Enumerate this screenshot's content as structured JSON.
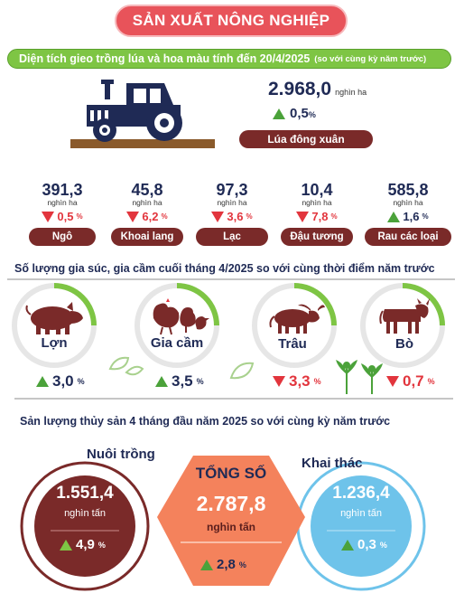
{
  "header": {
    "title": "SẢN XUẤT NÔNG NGHIỆP"
  },
  "planting": {
    "title": "Diện tích gieo trồng lúa và hoa màu tính đến 20/4/2025",
    "subtitle": "(so với cùng kỳ năm trước)",
    "main": {
      "value": "2.968,0",
      "unit": "nghìn ha",
      "change": "0,5",
      "percent_sign": "%",
      "direction": "up",
      "label": "Lúa đông xuân"
    },
    "crops": [
      {
        "value": "391,3",
        "unit": "nghìn ha",
        "change": "0,5",
        "direction": "down",
        "label": "Ngô"
      },
      {
        "value": "45,8",
        "unit": "nghìn ha",
        "change": "6,2",
        "direction": "down",
        "label": "Khoai lang"
      },
      {
        "value": "97,3",
        "unit": "nghìn ha",
        "change": "3,6",
        "direction": "down",
        "label": "Lạc"
      },
      {
        "value": "10,4",
        "unit": "nghìn ha",
        "change": "7,8",
        "direction": "down",
        "label": "Đậu tương"
      },
      {
        "value": "585,8",
        "unit": "nghìn ha",
        "change": "1,6",
        "direction": "up",
        "label": "Rau các loại"
      }
    ]
  },
  "livestock": {
    "title": "Số lượng gia súc, gia cầm cuối tháng 4/2025 so với cùng thời điểm năm trước",
    "items": [
      {
        "label": "Lợn",
        "change": "3,0",
        "direction": "up",
        "icon": "pig-icon"
      },
      {
        "label": "Gia cầm",
        "change": "3,5",
        "direction": "up",
        "icon": "poultry-icon"
      },
      {
        "label": "Trâu",
        "change": "3,3",
        "direction": "down",
        "icon": "buffalo-icon"
      },
      {
        "label": "Bò",
        "change": "0,7",
        "direction": "down",
        "icon": "cow-icon"
      }
    ]
  },
  "fishery": {
    "title": "Sản lượng thủy sản 4 tháng đầu năm 2025 so với cùng kỳ năm trước",
    "aquaculture": {
      "label": "Nuôi trồng",
      "value": "1.551,4",
      "unit": "nghìn tấn",
      "change": "4,9",
      "direction": "up"
    },
    "total": {
      "label": "TỔNG SỐ",
      "value": "2.787,8",
      "unit": "nghìn tấn",
      "change": "2,8",
      "direction": "up"
    },
    "capture": {
      "label": "Khai thác",
      "value": "1.236,4",
      "unit": "nghìn tấn",
      "change": "0,3",
      "direction": "up"
    }
  },
  "percent_sign": "%",
  "colors": {
    "red": "#e8535a",
    "green": "#7ec544",
    "brown": "#7a2a29",
    "navy": "#1f2a55",
    "orange": "#f4825c",
    "blue": "#6ec3ea"
  }
}
